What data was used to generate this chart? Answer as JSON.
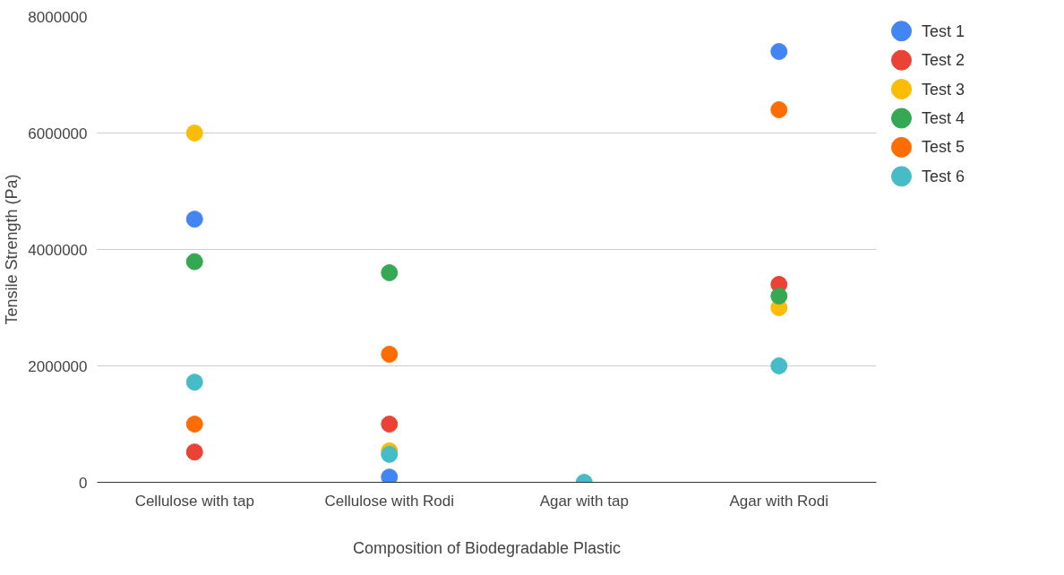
{
  "chart_data": {
    "type": "scatter",
    "xlabel": "Composition of Biodegradable Plastic",
    "ylabel": "Tensile Strength (Pa)",
    "categories": [
      "Cellulose with tap",
      "Cellulose with Rodi",
      "Agar with tap",
      "Agar with Rodi"
    ],
    "series": [
      {
        "name": "Test 1",
        "color": "#4285f4",
        "values": [
          4520000,
          90000,
          null,
          7400000
        ]
      },
      {
        "name": "Test 2",
        "color": "#ea4335",
        "values": [
          520000,
          1000000,
          null,
          3400000
        ]
      },
      {
        "name": "Test 3",
        "color": "#fbbc04",
        "values": [
          6000000,
          540000,
          null,
          3000000
        ]
      },
      {
        "name": "Test 4",
        "color": "#34a853",
        "values": [
          3790000,
          3600000,
          null,
          3200000
        ]
      },
      {
        "name": "Test 5",
        "color": "#ff6d01",
        "values": [
          1000000,
          2200000,
          null,
          6400000
        ]
      },
      {
        "name": "Test 6",
        "color": "#46bdc6",
        "values": [
          1720000,
          480000,
          0,
          2000000
        ]
      }
    ],
    "ylim": [
      0,
      8000000
    ],
    "yticks": [
      0,
      2000000,
      4000000,
      6000000,
      8000000
    ],
    "grid": "y",
    "legend": "right",
    "marker": "circle"
  }
}
